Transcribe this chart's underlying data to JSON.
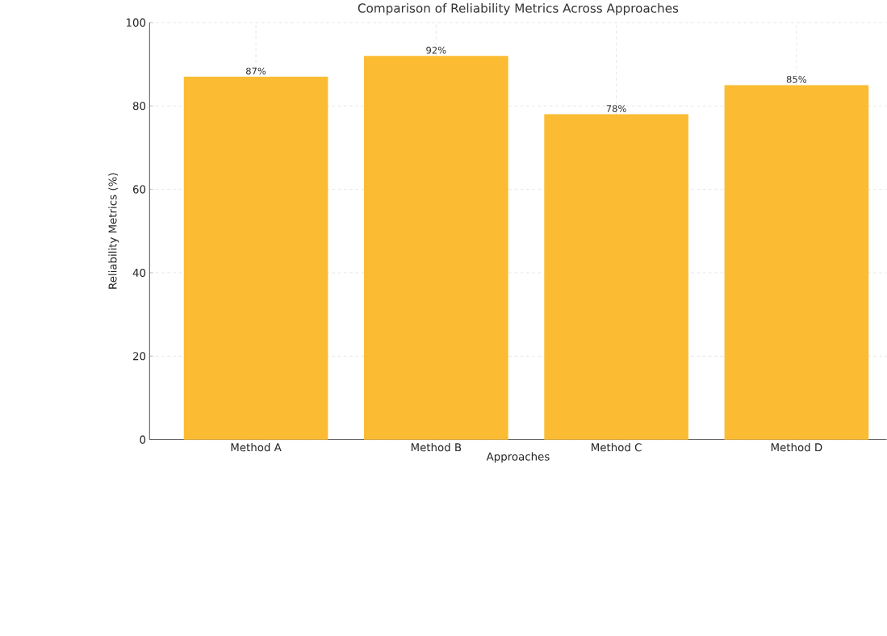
{
  "chart_data": {
    "type": "bar",
    "title": "Comparison of Reliability Metrics Across Approaches",
    "xlabel": "Approaches",
    "ylabel": "Reliability Metrics (%)",
    "categories": [
      "Method A",
      "Method B",
      "Method C",
      "Method D"
    ],
    "values": [
      87,
      92,
      78,
      85
    ],
    "value_labels": [
      "87%",
      "92%",
      "78%",
      "85%"
    ],
    "color": "#fbbc33",
    "ylim": [
      0,
      100
    ],
    "yticks": [
      0,
      20,
      40,
      60,
      80,
      100
    ],
    "grid": true
  }
}
